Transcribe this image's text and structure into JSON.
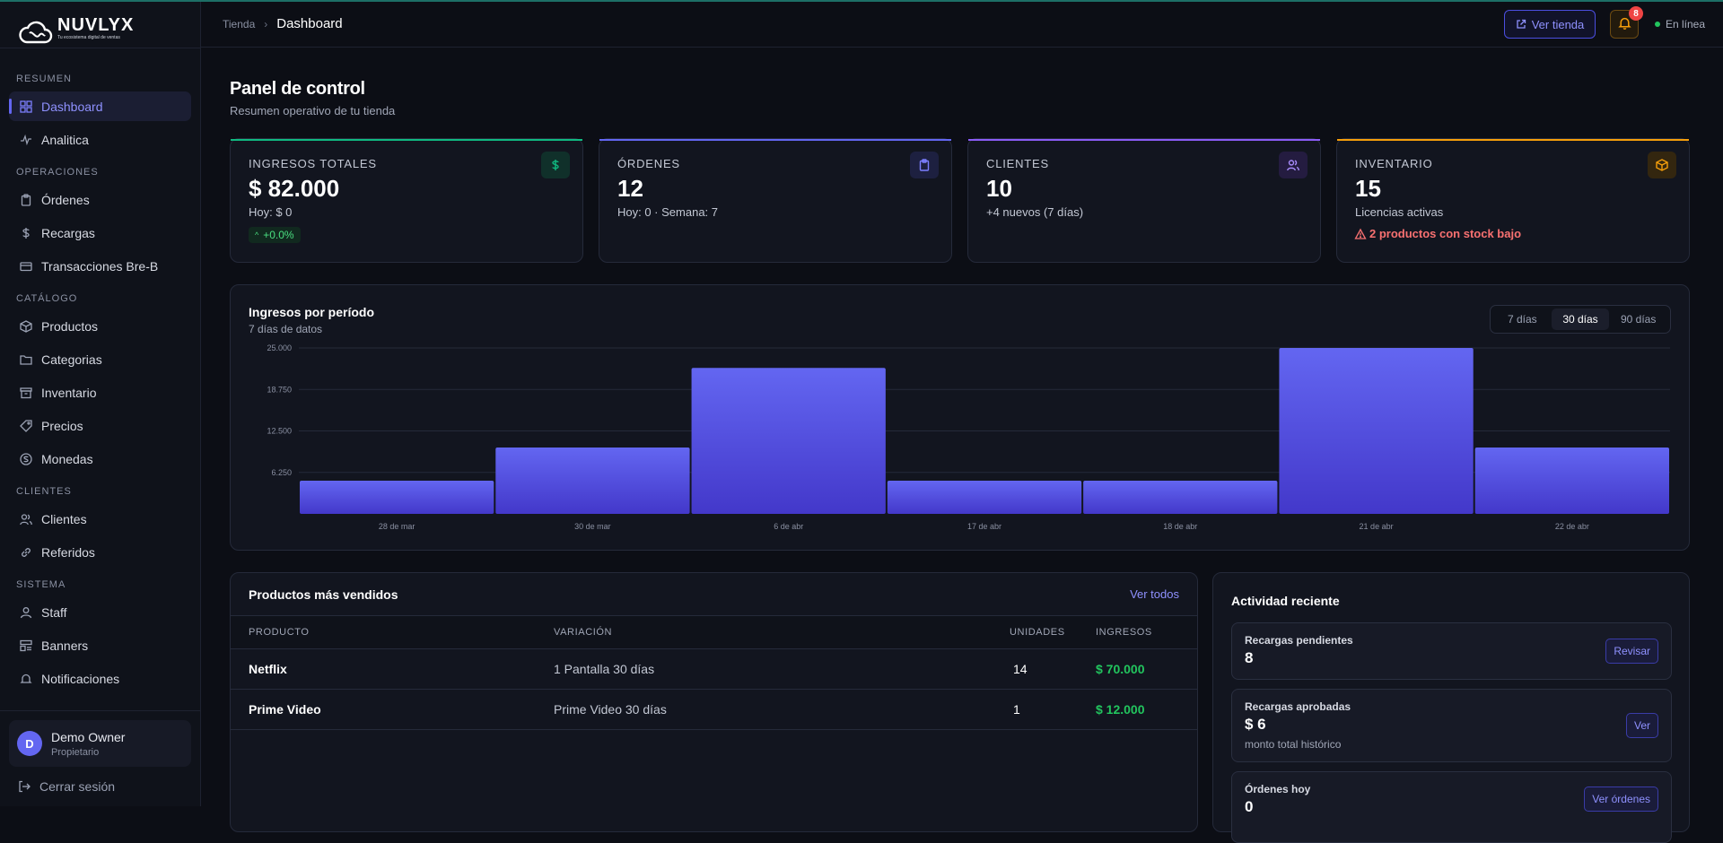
{
  "brand": {
    "name": "NUVLYX",
    "tagline": "Tu ecosistema digital de ventas"
  },
  "sidebar": {
    "sections": [
      {
        "title": "RESUMEN",
        "items": [
          {
            "label": "Dashboard",
            "icon": "grid-icon",
            "active": true
          },
          {
            "label": "Analitica",
            "icon": "activity-icon"
          }
        ]
      },
      {
        "title": "OPERACIONES",
        "items": [
          {
            "label": "Órdenes",
            "icon": "clipboard-icon"
          },
          {
            "label": "Recargas",
            "icon": "dollar-icon"
          },
          {
            "label": "Transacciones Bre-B",
            "icon": "card-icon"
          }
        ]
      },
      {
        "title": "CATÁLOGO",
        "items": [
          {
            "label": "Productos",
            "icon": "box-icon"
          },
          {
            "label": "Categorias",
            "icon": "folder-icon"
          },
          {
            "label": "Inventario",
            "icon": "archive-icon"
          },
          {
            "label": "Precios",
            "icon": "tag-icon"
          },
          {
            "label": "Monedas",
            "icon": "coin-icon"
          }
        ]
      },
      {
        "title": "CLIENTES",
        "items": [
          {
            "label": "Clientes",
            "icon": "users-icon"
          },
          {
            "label": "Referidos",
            "icon": "link-icon"
          }
        ]
      },
      {
        "title": "SISTEMA",
        "items": [
          {
            "label": "Staff",
            "icon": "staff-icon"
          },
          {
            "label": "Banners",
            "icon": "banner-icon"
          },
          {
            "label": "Notificaciones",
            "icon": "bell-icon"
          }
        ]
      }
    ],
    "user": {
      "initial": "D",
      "name": "Demo Owner",
      "role": "Propietario"
    },
    "logout": "Cerrar sesión"
  },
  "header": {
    "breadcrumb_root": "Tienda",
    "breadcrumb_current": "Dashboard",
    "store_button": "Ver tienda",
    "notifications_count": "8",
    "status": "En línea"
  },
  "page": {
    "title": "Panel de control",
    "subtitle": "Resumen operativo de tu tienda"
  },
  "stats": [
    {
      "label": "INGRESOS TOTALES",
      "value": "$ 82.000",
      "sub": "Hoy: $ 0",
      "chip": "+0.0%",
      "color": "#10b981",
      "icon": "dollar-icon"
    },
    {
      "label": "ÓRDENES",
      "value": "12",
      "sub": "Hoy: 0 · Semana: 7",
      "color": "#6366f1",
      "icon": "clipboard-icon"
    },
    {
      "label": "CLIENTES",
      "value": "10",
      "sub": "+4 nuevos (7 días)",
      "color": "#8b5cf6",
      "icon": "users-icon"
    },
    {
      "label": "INVENTARIO",
      "value": "15",
      "sub": "Licencias activas",
      "warning": "2 productos con stock bajo",
      "color": "#f59e0b",
      "icon": "box-icon"
    }
  ],
  "revenue_chart": {
    "title": "Ingresos por período",
    "subtitle": "7 días de datos",
    "ranges": [
      "7 días",
      "30 días",
      "90 días"
    ],
    "active_range": "30 días"
  },
  "chart_data": {
    "type": "bar",
    "title": "Ingresos por período",
    "categories": [
      "28 de mar",
      "30 de mar",
      "6 de abr",
      "17 de abr",
      "18 de abr",
      "21 de abr",
      "22 de abr"
    ],
    "values": [
      5000,
      10000,
      22000,
      5000,
      5000,
      25000,
      10000
    ],
    "y_ticks": [
      "25.000",
      "18.750",
      "12.500",
      "6.250"
    ],
    "ylim": [
      0,
      26000
    ],
    "grid": true,
    "bar_color": "#5b5ff0"
  },
  "top_products": {
    "title": "Productos más vendidos",
    "link": "Ver todos",
    "columns": [
      "PRODUCTO",
      "VARIACIÓN",
      "UNIDADES",
      "INGRESOS"
    ],
    "rows": [
      {
        "product": "Netflix",
        "variation": "1 Pantalla 30 días",
        "units": "14",
        "revenue": "$ 70.000"
      },
      {
        "product": "Prime Video",
        "variation": "Prime Video 30 días",
        "units": "1",
        "revenue": "$ 12.000"
      }
    ]
  },
  "activity": {
    "title": "Actividad reciente",
    "items": [
      {
        "label": "Recargas pendientes",
        "value": "8",
        "button": "Revisar"
      },
      {
        "label": "Recargas aprobadas",
        "value": "$ 6",
        "note": "monto total histórico",
        "button": "Ver"
      },
      {
        "label": "Órdenes hoy",
        "value": "0",
        "button": "Ver órdenes"
      }
    ]
  }
}
